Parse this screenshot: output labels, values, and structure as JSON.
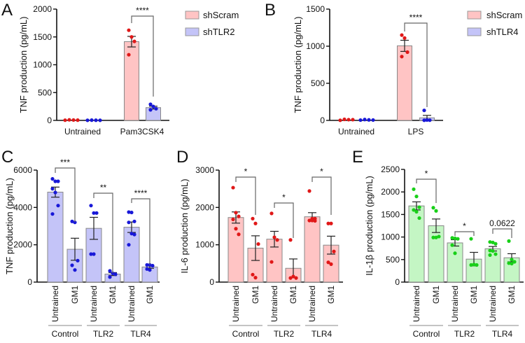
{
  "chart_data": [
    {
      "panel": "A",
      "type": "bar",
      "ylabel": "TNF production (pg/mL)",
      "ylim": [
        0,
        2000
      ],
      "yticks": [
        0,
        500,
        1000,
        1500,
        2000
      ],
      "categories": [
        "Untrained",
        "Pam3CSK4"
      ],
      "legend": [
        {
          "name": "shScram",
          "color": "#ffc4c4"
        },
        {
          "name": "shTLR2",
          "color": "#c4c4f8"
        }
      ],
      "legend_position": "right",
      "bars": [
        {
          "category": "Untrained",
          "series": "shScram",
          "value": 6,
          "sem": 2,
          "points": [
            4,
            10,
            7,
            5
          ],
          "fill": "#ffc4c4",
          "dot": "#e01818"
        },
        {
          "category": "Untrained",
          "series": "shTLR2",
          "value": 3,
          "sem": 1,
          "points": [
            2,
            5,
            3,
            2
          ],
          "fill": "#c4c4f8",
          "dot": "#1818d8"
        },
        {
          "category": "Pam3CSK4",
          "series": "shScram",
          "value": 1415,
          "sem": 95,
          "points": [
            1620,
            1500,
            1420,
            1180
          ],
          "fill": "#ffc4c4",
          "dot": "#e01818"
        },
        {
          "category": "Pam3CSK4",
          "series": "shTLR2",
          "value": 230,
          "sem": 25,
          "points": [
            290,
            250,
            210,
            190
          ],
          "fill": "#c4c4f8",
          "dot": "#1818d8"
        }
      ],
      "significance": [
        {
          "between": [
            2,
            3
          ],
          "label": "****"
        }
      ]
    },
    {
      "panel": "B",
      "type": "bar",
      "ylabel": "TNF production (pg/mL)",
      "ylim": [
        0,
        1500
      ],
      "yticks": [
        0,
        500,
        1000,
        1500
      ],
      "categories": [
        "Untrained",
        "LPS"
      ],
      "legend": [
        {
          "name": "shScram",
          "color": "#ffc4c4"
        },
        {
          "name": "shTLR4",
          "color": "#c4c4f8"
        }
      ],
      "legend_position": "right",
      "bars": [
        {
          "category": "Untrained",
          "series": "shScram",
          "value": 9,
          "sem": 3,
          "points": [
            2,
            14,
            10,
            10
          ],
          "fill": "#ffc4c4",
          "dot": "#e01818"
        },
        {
          "category": "Untrained",
          "series": "shTLR4",
          "value": 7,
          "sem": 2,
          "points": [
            4,
            12,
            7,
            5
          ],
          "fill": "#c4c4f8",
          "dot": "#1818d8"
        },
        {
          "category": "LPS",
          "series": "shScram",
          "value": 1005,
          "sem": 75,
          "points": [
            1150,
            1110,
            920,
            860
          ],
          "fill": "#ffc4c4",
          "dot": "#e01818"
        },
        {
          "category": "LPS",
          "series": "shTLR4",
          "value": 35,
          "sem": 33,
          "points": [
            135,
            5,
            3,
            2
          ],
          "fill": "#c4c4f8",
          "dot": "#1818d8"
        }
      ],
      "significance": [
        {
          "between": [
            2,
            3
          ],
          "label": "****"
        }
      ]
    },
    {
      "panel": "C",
      "type": "bar",
      "ylabel": "TNF production (pg/mL)",
      "ylim": [
        0,
        6000
      ],
      "yticks": [
        0,
        2000,
        4000,
        6000
      ],
      "groups": [
        "Control",
        "TLR2",
        "TLR4"
      ],
      "bars": [
        {
          "group": "Control",
          "label": "Untrained",
          "value": 4820,
          "sem": 270,
          "points": [
            5530,
            5400,
            5400,
            5000,
            4800,
            4100,
            3650
          ]
        },
        {
          "group": "Control",
          "label": "GM1",
          "value": 1760,
          "sem": 590,
          "points": [
            3250,
            3200,
            1150,
            900,
            650
          ]
        },
        {
          "group": "TLR2",
          "label": "Untrained",
          "value": 2880,
          "sem": 590,
          "points": [
            4100,
            3700,
            3700,
            1500,
            1500
          ]
        },
        {
          "group": "TLR2",
          "label": "GM1",
          "value": 430,
          "sem": 80,
          "points": [
            600,
            470,
            420,
            270
          ]
        },
        {
          "group": "TLR4",
          "label": "Untrained",
          "value": 2940,
          "sem": 280,
          "points": [
            3750,
            3730,
            3250,
            3200,
            2600,
            2550,
            2000
          ]
        },
        {
          "group": "TLR4",
          "label": "GM1",
          "value": 810,
          "sem": 70,
          "points": [
            920,
            920,
            880,
            700,
            650
          ]
        }
      ],
      "fill": "#c4c4f8",
      "dot": "#1818d8",
      "significance": [
        {
          "between": [
            0,
            1
          ],
          "label": "***"
        },
        {
          "between": [
            2,
            3
          ],
          "label": "**"
        },
        {
          "between": [
            4,
            5
          ],
          "label": "****"
        }
      ]
    },
    {
      "panel": "D",
      "type": "bar",
      "ylabel": "IL-6 production (pg/mL)",
      "ylim": [
        0,
        3000
      ],
      "yticks": [
        0,
        1000,
        2000,
        3000
      ],
      "groups": [
        "Control",
        "TLR2",
        "TLR4"
      ],
      "bars": [
        {
          "group": "Control",
          "label": "Untrained",
          "value": 1730,
          "sem": 150,
          "points": [
            2530,
            1860,
            1760,
            1680,
            1430,
            1280
          ]
        },
        {
          "group": "Control",
          "label": "GM1",
          "value": 910,
          "sem": 330,
          "points": [
            1700,
            1570,
            1020,
            200,
            120
          ]
        },
        {
          "group": "TLR2",
          "label": "Untrained",
          "value": 1150,
          "sem": 210,
          "points": [
            1840,
            1200,
            1130,
            540
          ]
        },
        {
          "group": "TLR2",
          "label": "GM1",
          "value": 370,
          "sem": 250,
          "points": [
            1130,
            150,
            110,
            110
          ]
        },
        {
          "group": "TLR4",
          "label": "Untrained",
          "value": 1750,
          "sem": 110,
          "points": [
            2440,
            1700,
            1700,
            1650,
            1650,
            1640
          ]
        },
        {
          "group": "TLR4",
          "label": "GM1",
          "value": 990,
          "sem": 240,
          "points": [
            1570,
            1570,
            820,
            530,
            480
          ]
        }
      ],
      "fill": "#ffc4c4",
      "dot": "#e01818",
      "significance": [
        {
          "between": [
            0,
            1
          ],
          "label": "*"
        },
        {
          "between": [
            2,
            3
          ],
          "label": "*"
        },
        {
          "between": [
            4,
            5
          ],
          "label": "*"
        }
      ]
    },
    {
      "panel": "E",
      "type": "bar",
      "ylabel": "IL-1β production (pg/mL)",
      "ylim": [
        0,
        2500
      ],
      "yticks": [
        0,
        500,
        1000,
        1500,
        2000,
        2500
      ],
      "groups": [
        "Control",
        "TLR2",
        "TLR4"
      ],
      "bars": [
        {
          "group": "Control",
          "label": "Untrained",
          "value": 1690,
          "sem": 90,
          "points": [
            2060,
            1900,
            1660,
            1600,
            1560,
            1420
          ]
        },
        {
          "group": "Control",
          "label": "GM1",
          "value": 1250,
          "sem": 150,
          "points": [
            1650,
            1580,
            1010,
            990,
            990
          ]
        },
        {
          "group": "TLR2",
          "label": "Untrained",
          "value": 870,
          "sem": 70,
          "points": [
            980,
            970,
            960,
            820,
            640
          ]
        },
        {
          "group": "TLR2",
          "label": "GM1",
          "value": 510,
          "sem": 150,
          "points": [
            960,
            390,
            380,
            380
          ]
        },
        {
          "group": "TLR4",
          "label": "Untrained",
          "value": 740,
          "sem": 50,
          "points": [
            890,
            880,
            850,
            700,
            690,
            620,
            600
          ]
        },
        {
          "group": "TLR4",
          "label": "GM1",
          "value": 540,
          "sem": 90,
          "points": [
            910,
            500,
            450,
            420,
            410
          ]
        }
      ],
      "fill": "#c4f6c4",
      "dot": "#18d018",
      "significance": [
        {
          "between": [
            0,
            1
          ],
          "label": "*"
        },
        {
          "between": [
            2,
            3
          ],
          "label": "*"
        },
        {
          "between": [
            4,
            5
          ],
          "label": "0.0622"
        }
      ]
    }
  ]
}
